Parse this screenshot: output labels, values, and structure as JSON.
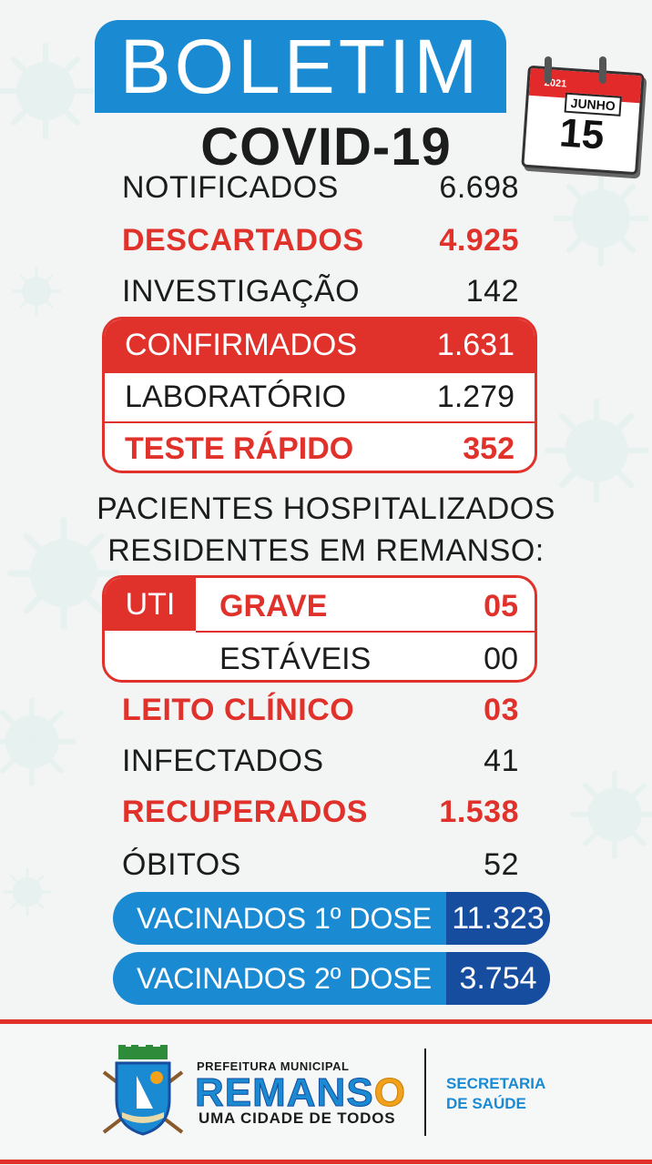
{
  "header": {
    "title": "BOLETIM",
    "subtitle": "COVID-19"
  },
  "calendar": {
    "year": "2021",
    "month": "JUNHO",
    "day": "15"
  },
  "stats_top": [
    {
      "label": "NOTIFICADOS",
      "value": "6.698",
      "style": "black"
    },
    {
      "label": "DESCARTADOS",
      "value": "4.925",
      "style": "red"
    },
    {
      "label": "INVESTIGAÇÃO",
      "value": "142",
      "style": "black"
    }
  ],
  "confirmed": {
    "head": {
      "label": "CONFIRMADOS",
      "value": "1.631"
    },
    "lab": {
      "label": "LABORATÓRIO",
      "value": "1.279"
    },
    "rapid": {
      "label": "TESTE RÁPIDO",
      "value": "352"
    }
  },
  "hospital": {
    "title_line1": "PACIENTES HOSPITALIZADOS",
    "title_line2": "RESIDENTES EM REMANSO:",
    "uti_label": "UTI",
    "grave": {
      "label": "GRAVE",
      "value": "05"
    },
    "estaveis": {
      "label": "ESTÁVEIS",
      "value": "00"
    }
  },
  "stats_bottom": [
    {
      "label": "LEITO CLÍNICO",
      "value": "03",
      "style": "red"
    },
    {
      "label": "INFECTADOS",
      "value": "41",
      "style": "black"
    },
    {
      "label": "RECUPERADOS",
      "value": "1.538",
      "style": "red"
    },
    {
      "label": "ÓBITOS",
      "value": "52",
      "style": "black"
    }
  ],
  "vaccines": [
    {
      "label": "VACINADOS 1º DOSE",
      "value": "11.323"
    },
    {
      "label": "VACINADOS 2º DOSE",
      "value": "3.754"
    }
  ],
  "footer": {
    "prefeitura": "PREFEITURA MUNICIPAL",
    "city_part1": "REMANS",
    "city_part2": "O",
    "tagline": "UMA CIDADE DE TODOS",
    "secretaria_line1": "SECRETARIA",
    "secretaria_line2": "DE SAÚDE"
  },
  "colors": {
    "red": "#e0312b",
    "blue": "#1a8ad3",
    "dark_blue": "#164d9e",
    "text": "#1c1c1c"
  }
}
